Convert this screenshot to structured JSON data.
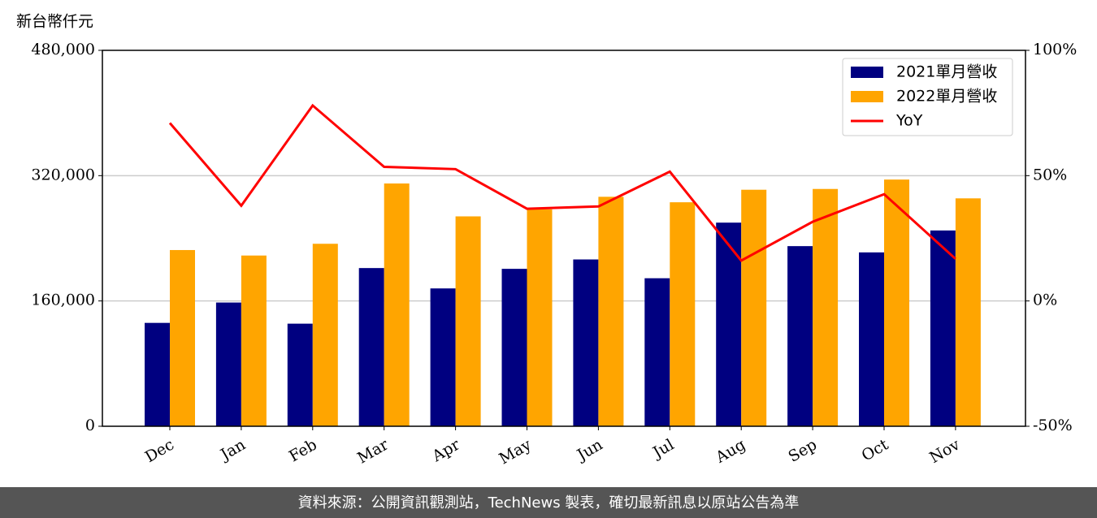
{
  "chart_data": {
    "type": "bar_line",
    "y_label": "新台幣仟元",
    "footer": "資料來源：公開資訊觀測站，TechNews 製表，確切最新訊息以原站公告為準",
    "categories": [
      "Dec",
      "Jan",
      "Feb",
      "Mar",
      "Apr",
      "May",
      "Jun",
      "Jul",
      "Aug",
      "Sep",
      "Oct",
      "Nov"
    ],
    "series": [
      {
        "name": "2021單月營收",
        "color": "#000080",
        "values": [
          132000,
          158000,
          131000,
          202000,
          176000,
          201000,
          213000,
          189000,
          260000,
          230000,
          222000,
          250000
        ]
      },
      {
        "name": "2022單月營收",
        "color": "#ffa500",
        "values": [
          225000,
          218000,
          233000,
          310000,
          268000,
          277000,
          293000,
          286000,
          302000,
          303000,
          315000,
          291000
        ]
      },
      {
        "name": "YoY",
        "color": "#ff0000",
        "axis": "y2",
        "values": [
          71,
          38,
          78,
          53.5,
          52.6,
          36.8,
          37.7,
          51.6,
          16.1,
          31.6,
          42.6,
          16.8
        ]
      }
    ],
    "ylim": [
      0,
      480000
    ],
    "yticks": [
      0,
      {
        "value": 160000,
        "label": "160,000"
      },
      {
        "value": 320000,
        "label": "320,000"
      },
      {
        "value": 480000,
        "label": "480,000"
      }
    ],
    "y2lim": [
      -50,
      100
    ],
    "y2ticks": [
      {
        "value": -50,
        "label": "-50%"
      },
      {
        "value": 0,
        "label": "0%"
      },
      {
        "value": 50,
        "label": "50%"
      },
      {
        "value": 100,
        "label": "100%"
      }
    ],
    "grid": true,
    "legend": "upper right"
  }
}
